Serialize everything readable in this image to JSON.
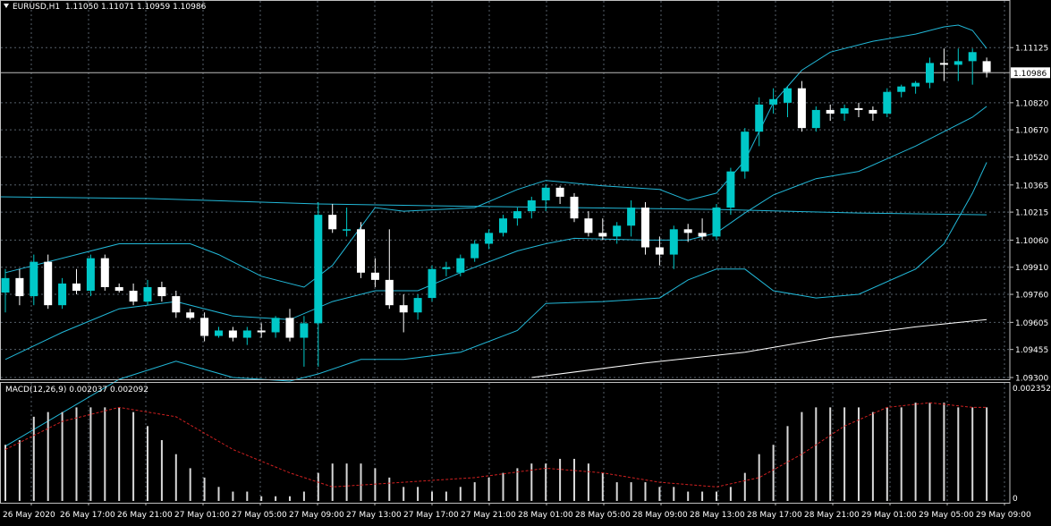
{
  "header": {
    "symbol": "EURUSD,H1",
    "ohlc": "1.11050 1.11071 1.10959 1.10986"
  },
  "macd_header": "MACD(12,26,9) 0.002037 0.002092",
  "price_axis": {
    "ticks": [
      "1.11125",
      "1.10820",
      "1.10670",
      "1.10520",
      "1.10365",
      "1.10215",
      "1.10060",
      "1.09910",
      "1.09760",
      "1.09605",
      "1.09455",
      "1.09300"
    ],
    "current_price": "1.10986"
  },
  "macd_axis": {
    "top": "0.002352",
    "bottom": "0"
  },
  "time_axis": [
    "26 May 2020",
    "26 May 17:00",
    "26 May 21:00",
    "27 May 01:00",
    "27 May 05:00",
    "27 May 09:00",
    "27 May 13:00",
    "27 May 17:00",
    "27 May 21:00",
    "28 May 01:00",
    "28 May 05:00",
    "28 May 09:00",
    "28 May 13:00",
    "28 May 17:00",
    "28 May 21:00",
    "29 May 01:00",
    "29 May 05:00",
    "29 May 09:00"
  ],
  "colors": {
    "bull": "#00c8c8",
    "bear": "#ffffff",
    "bands": "#22b8d8",
    "ma_long": "#22b8d8",
    "ma_white": "#ffffff",
    "macd_hist": "#d8d8d8",
    "macd_signal": "#d02020",
    "grid": "#56606a"
  },
  "chart_data": {
    "type": "candlestick",
    "price_range": [
      1.093,
      1.1123
    ],
    "candles": [
      [
        1.0977,
        1.099,
        1.0966,
        1.0985
      ],
      [
        1.0985,
        1.099,
        1.097,
        1.0975
      ],
      [
        1.0975,
        1.0998,
        1.097,
        1.0994
      ],
      [
        1.0994,
        1.0998,
        1.0968,
        1.097
      ],
      [
        1.097,
        1.0985,
        1.0968,
        1.0982
      ],
      [
        1.0982,
        1.099,
        1.0976,
        1.0978
      ],
      [
        1.0978,
        1.0998,
        1.0975,
        1.0996
      ],
      [
        1.0996,
        1.0998,
        1.0978,
        1.098
      ],
      [
        1.098,
        1.0982,
        1.0977,
        1.0978
      ],
      [
        1.0978,
        1.0982,
        1.097,
        1.0972
      ],
      [
        1.0972,
        1.0984,
        1.097,
        1.098
      ],
      [
        1.098,
        1.0983,
        1.0972,
        1.0975
      ],
      [
        1.0975,
        1.0978,
        1.0963,
        1.0966
      ],
      [
        1.0966,
        1.0968,
        1.0962,
        1.0963
      ],
      [
        1.0963,
        1.0966,
        1.095,
        1.0953
      ],
      [
        1.0953,
        1.0958,
        1.0952,
        1.0956
      ],
      [
        1.0956,
        1.0958,
        1.095,
        1.0952
      ],
      [
        1.0952,
        1.0958,
        1.0948,
        1.0956
      ],
      [
        1.0956,
        1.096,
        1.0952,
        1.0955
      ],
      [
        1.0955,
        1.0964,
        1.0952,
        1.0963
      ],
      [
        1.0963,
        1.0968,
        1.095,
        1.0952
      ],
      [
        1.0952,
        1.0964,
        1.0936,
        1.096
      ],
      [
        1.096,
        1.1027,
        1.0936,
        1.102
      ],
      [
        1.102,
        1.1026,
        1.101,
        1.1012
      ],
      [
        1.1012,
        1.1024,
        1.1008,
        1.1012
      ],
      [
        1.1012,
        1.1016,
        1.0985,
        1.0988
      ],
      [
        1.0988,
        1.0996,
        1.098,
        1.0984
      ],
      [
        1.0984,
        1.1012,
        1.0968,
        1.097
      ],
      [
        1.097,
        1.0976,
        1.0955,
        1.0966
      ],
      [
        1.0966,
        1.0976,
        1.0962,
        1.0974
      ],
      [
        1.0974,
        1.0992,
        1.0972,
        1.099
      ],
      [
        1.099,
        1.0994,
        1.0986,
        1.0991
      ],
      [
        1.0988,
        1.0998,
        1.0986,
        1.0996
      ],
      [
        1.0996,
        1.1006,
        1.0994,
        1.1004
      ],
      [
        1.1004,
        1.1012,
        1.1001,
        1.101
      ],
      [
        1.101,
        1.102,
        1.1008,
        1.1018
      ],
      [
        1.1018,
        1.1024,
        1.1014,
        1.1022
      ],
      [
        1.1022,
        1.103,
        1.1018,
        1.1028
      ],
      [
        1.1028,
        1.1037,
        1.1022,
        1.1035
      ],
      [
        1.1035,
        1.1036,
        1.1026,
        1.103
      ],
      [
        1.103,
        1.1032,
        1.1016,
        1.1018
      ],
      [
        1.1018,
        1.1022,
        1.1008,
        1.101
      ],
      [
        1.101,
        1.1018,
        1.1006,
        1.1008
      ],
      [
        1.1008,
        1.1016,
        1.1004,
        1.1014
      ],
      [
        1.1014,
        1.1028,
        1.1008,
        1.1024
      ],
      [
        1.1024,
        1.1027,
        1.0998,
        1.1002
      ],
      [
        1.1002,
        1.1008,
        1.0992,
        1.0998
      ],
      [
        1.0998,
        1.1014,
        1.099,
        1.1012
      ],
      [
        1.1012,
        1.1015,
        1.1005,
        1.101
      ],
      [
        1.101,
        1.1018,
        1.1006,
        1.1008
      ],
      [
        1.1008,
        1.1026,
        1.1006,
        1.1024
      ],
      [
        1.1024,
        1.1046,
        1.102,
        1.1044
      ],
      [
        1.1044,
        1.1068,
        1.104,
        1.1066
      ],
      [
        1.1066,
        1.1085,
        1.1058,
        1.1081
      ],
      [
        1.1081,
        1.109,
        1.1076,
        1.1084
      ],
      [
        1.1082,
        1.1091,
        1.1074,
        1.109
      ],
      [
        1.109,
        1.1094,
        1.1066,
        1.1068
      ],
      [
        1.1068,
        1.108,
        1.1066,
        1.1078
      ],
      [
        1.1078,
        1.1081,
        1.1072,
        1.1076
      ],
      [
        1.1076,
        1.1081,
        1.1072,
        1.1079
      ],
      [
        1.1079,
        1.1082,
        1.1074,
        1.1078
      ],
      [
        1.1078,
        1.108,
        1.1072,
        1.1076
      ],
      [
        1.1076,
        1.109,
        1.1074,
        1.1088
      ],
      [
        1.1088,
        1.1092,
        1.1085,
        1.1091
      ],
      [
        1.1091,
        1.1094,
        1.1087,
        1.1093
      ],
      [
        1.1093,
        1.1107,
        1.109,
        1.1104
      ],
      [
        1.1104,
        1.1112,
        1.1094,
        1.1103
      ],
      [
        1.1103,
        1.1112,
        1.1094,
        1.1105
      ],
      [
        1.1105,
        1.1112,
        1.1092,
        1.111
      ],
      [
        1.1105,
        1.1107,
        1.1096,
        1.1099
      ]
    ],
    "bb_upper": [
      [
        0,
        1.0988
      ],
      [
        8,
        1.1004
      ],
      [
        13,
        1.1004
      ],
      [
        15,
        1.0998
      ],
      [
        18,
        1.0986
      ],
      [
        21,
        1.098
      ],
      [
        23,
        1.0992
      ],
      [
        26,
        1.1024
      ],
      [
        28,
        1.1022
      ],
      [
        33,
        1.1024
      ],
      [
        36,
        1.1034
      ],
      [
        38,
        1.1039
      ],
      [
        42,
        1.1036
      ],
      [
        46,
        1.1034
      ],
      [
        48,
        1.1028
      ],
      [
        50,
        1.1032
      ],
      [
        52,
        1.105
      ],
      [
        54,
        1.1082
      ],
      [
        56,
        1.11
      ],
      [
        58,
        1.111
      ],
      [
        61,
        1.1116
      ],
      [
        64,
        1.112
      ],
      [
        66,
        1.1124
      ],
      [
        67,
        1.1125
      ],
      [
        68,
        1.1122
      ],
      [
        69,
        1.1112
      ]
    ],
    "bb_middle": [
      [
        0,
        1.094
      ],
      [
        4,
        1.0955
      ],
      [
        8,
        1.0968
      ],
      [
        12,
        1.0972
      ],
      [
        16,
        1.0964
      ],
      [
        20,
        1.0962
      ],
      [
        23,
        1.0972
      ],
      [
        26,
        1.0978
      ],
      [
        29,
        1.0978
      ],
      [
        32,
        1.0988
      ],
      [
        36,
        1.1
      ],
      [
        38,
        1.1004
      ],
      [
        40,
        1.1007
      ],
      [
        45,
        1.1006
      ],
      [
        48,
        1.1006
      ],
      [
        50,
        1.101
      ],
      [
        52,
        1.1021
      ],
      [
        54,
        1.1031
      ],
      [
        57,
        1.104
      ],
      [
        60,
        1.1044
      ],
      [
        64,
        1.1058
      ],
      [
        68,
        1.1074
      ],
      [
        69,
        1.108
      ]
    ],
    "bb_lower": [
      [
        0,
        1.0892
      ],
      [
        8,
        1.0929
      ],
      [
        12,
        1.0939
      ],
      [
        16,
        1.093
      ],
      [
        20,
        1.0928
      ],
      [
        22,
        1.0932
      ],
      [
        25,
        1.094
      ],
      [
        28,
        1.094
      ],
      [
        32,
        1.0944
      ],
      [
        36,
        1.0956
      ],
      [
        38,
        1.0971
      ],
      [
        42,
        1.0972
      ],
      [
        46,
        1.0974
      ],
      [
        48,
        1.0984
      ],
      [
        50,
        1.099
      ],
      [
        52,
        1.099
      ],
      [
        54,
        1.0978
      ],
      [
        57,
        1.0974
      ],
      [
        60,
        1.0976
      ],
      [
        64,
        1.099
      ],
      [
        66,
        1.1004
      ],
      [
        68,
        1.1032
      ],
      [
        69,
        1.1049
      ]
    ],
    "ma_long": [
      [
        -1,
        1.103
      ],
      [
        10,
        1.1029
      ],
      [
        22,
        1.1026
      ],
      [
        30,
        1.1025
      ],
      [
        40,
        1.1024
      ],
      [
        50,
        1.1023
      ],
      [
        60,
        1.1021
      ],
      [
        69,
        1.102
      ]
    ],
    "ma_white": [
      [
        37,
        1.093
      ],
      [
        45,
        1.0938
      ],
      [
        52,
        1.0944
      ],
      [
        58,
        1.0952
      ],
      [
        64,
        1.0958
      ],
      [
        69,
        1.0962
      ]
    ],
    "macd_range": [
      0,
      0.002352
    ],
    "macd_hist": [
      0.0012,
      0.0013,
      0.0018,
      0.0019,
      0.0019,
      0.002,
      0.002,
      0.002,
      0.002,
      0.0019,
      0.0016,
      0.0013,
      0.001,
      0.0007,
      0.0005,
      0.0003,
      0.0002,
      0.0002,
      0.0001,
      0.0001,
      0.0001,
      0.0002,
      0.0006,
      0.0008,
      0.0008,
      0.0008,
      0.0007,
      0.0005,
      0.0003,
      0.0003,
      0.0002,
      0.0002,
      0.0003,
      0.0004,
      0.0005,
      0.0006,
      0.0007,
      0.0008,
      0.0008,
      0.0009,
      0.0009,
      0.0008,
      0.0006,
      0.0004,
      0.0004,
      0.0004,
      0.0003,
      0.0003,
      0.0002,
      0.0002,
      0.0002,
      0.0003,
      0.0006,
      0.001,
      0.0012,
      0.0016,
      0.0019,
      0.002,
      0.002,
      0.002,
      0.002,
      0.0019,
      0.002,
      0.002,
      0.0021,
      0.0021,
      0.0021,
      0.002,
      0.002,
      0.002
    ],
    "macd_signal": [
      [
        0,
        0.0011
      ],
      [
        4,
        0.0017
      ],
      [
        8,
        0.002
      ],
      [
        12,
        0.0018
      ],
      [
        16,
        0.0011
      ],
      [
        20,
        0.0006
      ],
      [
        23,
        0.0003
      ],
      [
        28,
        0.0004
      ],
      [
        33,
        0.0005
      ],
      [
        38,
        0.0007
      ],
      [
        42,
        0.0006
      ],
      [
        46,
        0.0004
      ],
      [
        50,
        0.0003
      ],
      [
        53,
        0.0005
      ],
      [
        56,
        0.001
      ],
      [
        59,
        0.0016
      ],
      [
        62,
        0.002
      ],
      [
        65,
        0.0021
      ],
      [
        68,
        0.002
      ],
      [
        69,
        0.002
      ]
    ]
  }
}
